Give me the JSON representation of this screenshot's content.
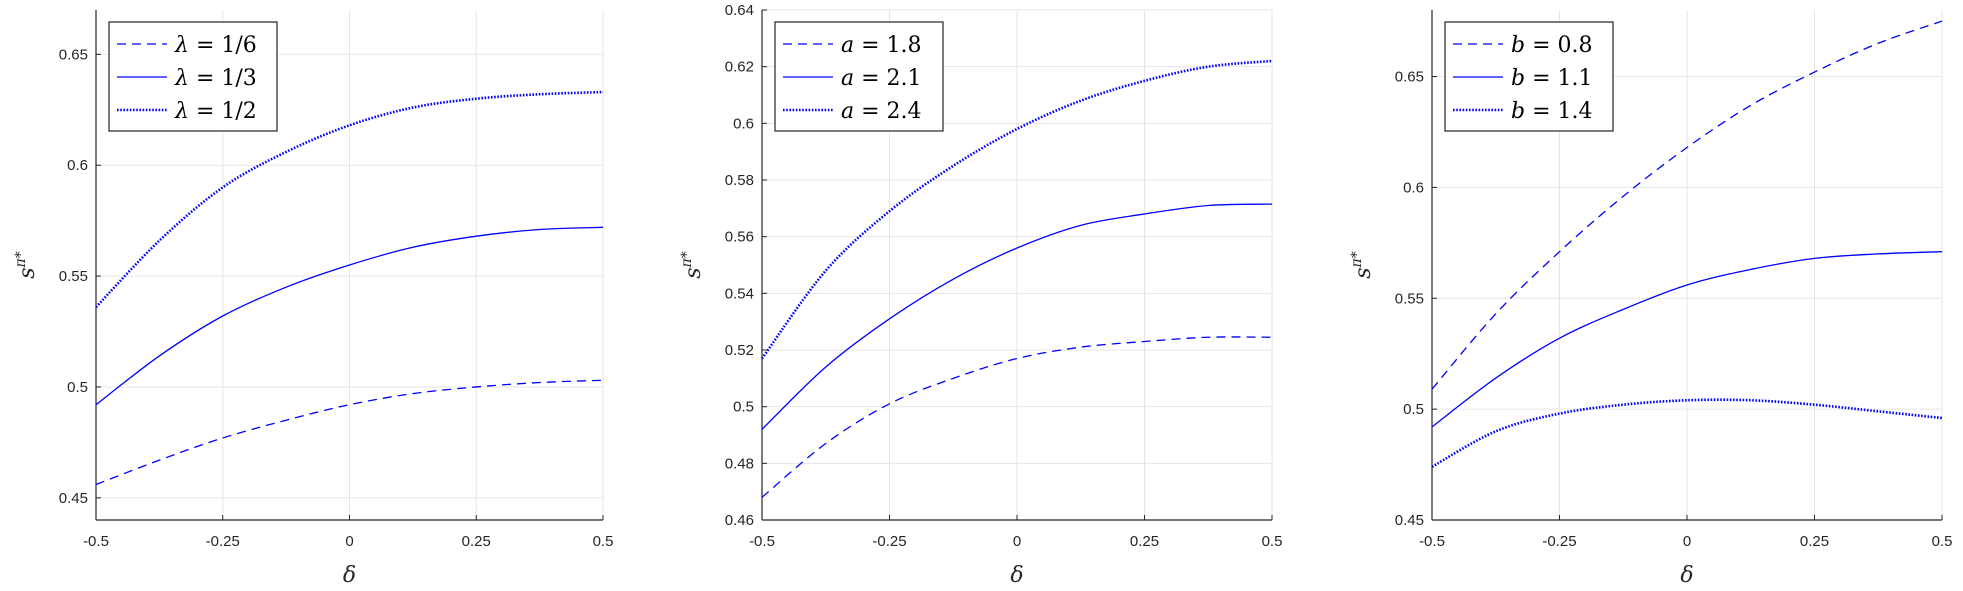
{
  "colors": {
    "line": "#0000ff",
    "axis": "#262626",
    "grid": "#e6e6e6"
  },
  "chart_data": [
    {
      "type": "line",
      "xlabel": "δ",
      "ylabel": "s^π*",
      "xlim": [
        -0.5,
        0.5
      ],
      "ylim": [
        0.44,
        0.67
      ],
      "xticks": [
        -0.5,
        -0.25,
        0,
        0.25,
        0.5
      ],
      "xtick_labels": [
        "-0.5",
        "-0.25",
        "0",
        "0.25",
        "0.5"
      ],
      "yticks": [
        0.45,
        0.5,
        0.55,
        0.6,
        0.65
      ],
      "ytick_labels": [
        "0.45",
        "0.5",
        "0.55",
        "0.6",
        "0.65"
      ],
      "grid": true,
      "legend_position": "top-left",
      "x": [
        -0.5,
        -0.375,
        -0.25,
        -0.125,
        0,
        0.125,
        0.25,
        0.375,
        0.5
      ],
      "series": [
        {
          "name": "λ = 1/6",
          "var": "λ",
          "val": "1/6",
          "style": "dashed",
          "values": [
            0.456,
            0.467,
            0.477,
            0.485,
            0.492,
            0.497,
            0.5,
            0.502,
            0.503
          ]
        },
        {
          "name": "λ = 1/3",
          "var": "λ",
          "val": "1/3",
          "style": "solid",
          "values": [
            0.492,
            0.514,
            0.532,
            0.545,
            0.555,
            0.563,
            0.568,
            0.571,
            0.572
          ]
        },
        {
          "name": "λ = 1/2",
          "var": "λ",
          "val": "1/2",
          "style": "dotted",
          "values": [
            0.536,
            0.566,
            0.59,
            0.606,
            0.618,
            0.626,
            0.63,
            0.632,
            0.633
          ]
        }
      ]
    },
    {
      "type": "line",
      "xlabel": "δ",
      "ylabel": "s^π*",
      "xlim": [
        -0.5,
        0.5
      ],
      "ylim": [
        0.46,
        0.64
      ],
      "xticks": [
        -0.5,
        -0.25,
        0,
        0.25,
        0.5
      ],
      "xtick_labels": [
        "-0.5",
        "-0.25",
        "0",
        "0.25",
        "0.5"
      ],
      "yticks": [
        0.46,
        0.48,
        0.5,
        0.52,
        0.54,
        0.56,
        0.58,
        0.6,
        0.62,
        0.64
      ],
      "ytick_labels": [
        "0.46",
        "0.48",
        "0.5",
        "0.52",
        "0.54",
        "0.56",
        "0.58",
        "0.6",
        "0.62",
        "0.64"
      ],
      "grid": true,
      "legend_position": "top-left",
      "x": [
        -0.5,
        -0.375,
        -0.25,
        -0.125,
        0,
        0.125,
        0.25,
        0.375,
        0.5
      ],
      "series": [
        {
          "name": "a = 1.8",
          "var": "a",
          "val": "1.8",
          "style": "dashed",
          "values": [
            0.468,
            0.487,
            0.501,
            0.51,
            0.517,
            0.521,
            0.523,
            0.5245,
            0.5245
          ]
        },
        {
          "name": "a = 2.1",
          "var": "a",
          "val": "2.1",
          "style": "solid",
          "values": [
            0.492,
            0.514,
            0.531,
            0.545,
            0.556,
            0.564,
            0.568,
            0.571,
            0.5715
          ]
        },
        {
          "name": "a = 2.4",
          "var": "a",
          "val": "2.4",
          "style": "dotted",
          "values": [
            0.517,
            0.548,
            0.569,
            0.585,
            0.598,
            0.608,
            0.615,
            0.62,
            0.622
          ]
        }
      ]
    },
    {
      "type": "line",
      "xlabel": "δ",
      "ylabel": "s^π*",
      "xlim": [
        -0.5,
        0.5
      ],
      "ylim": [
        0.45,
        0.68
      ],
      "xticks": [
        -0.5,
        -0.25,
        0,
        0.25,
        0.5
      ],
      "xtick_labels": [
        "-0.5",
        "-0.25",
        "0",
        "0.25",
        "0.5"
      ],
      "yticks": [
        0.45,
        0.5,
        0.55,
        0.6,
        0.65
      ],
      "ytick_labels": [
        "0.45",
        "0.5",
        "0.55",
        "0.6",
        "0.65"
      ],
      "grid": true,
      "legend_position": "top-left",
      "x": [
        -0.5,
        -0.375,
        -0.25,
        -0.125,
        0,
        0.125,
        0.25,
        0.375,
        0.5
      ],
      "series": [
        {
          "name": "b = 0.8",
          "var": "b",
          "val": "0.8",
          "style": "dashed",
          "values": [
            0.509,
            0.543,
            0.571,
            0.596,
            0.618,
            0.637,
            0.652,
            0.665,
            0.675
          ]
        },
        {
          "name": "b = 1.1",
          "var": "b",
          "val": "1.1",
          "style": "solid",
          "values": [
            0.492,
            0.514,
            0.532,
            0.545,
            0.556,
            0.563,
            0.568,
            0.57,
            0.571
          ]
        },
        {
          "name": "b = 1.4",
          "var": "b",
          "val": "1.4",
          "style": "dotted",
          "values": [
            0.474,
            0.49,
            0.498,
            0.502,
            0.504,
            0.504,
            0.502,
            0.499,
            0.496
          ]
        }
      ]
    }
  ]
}
